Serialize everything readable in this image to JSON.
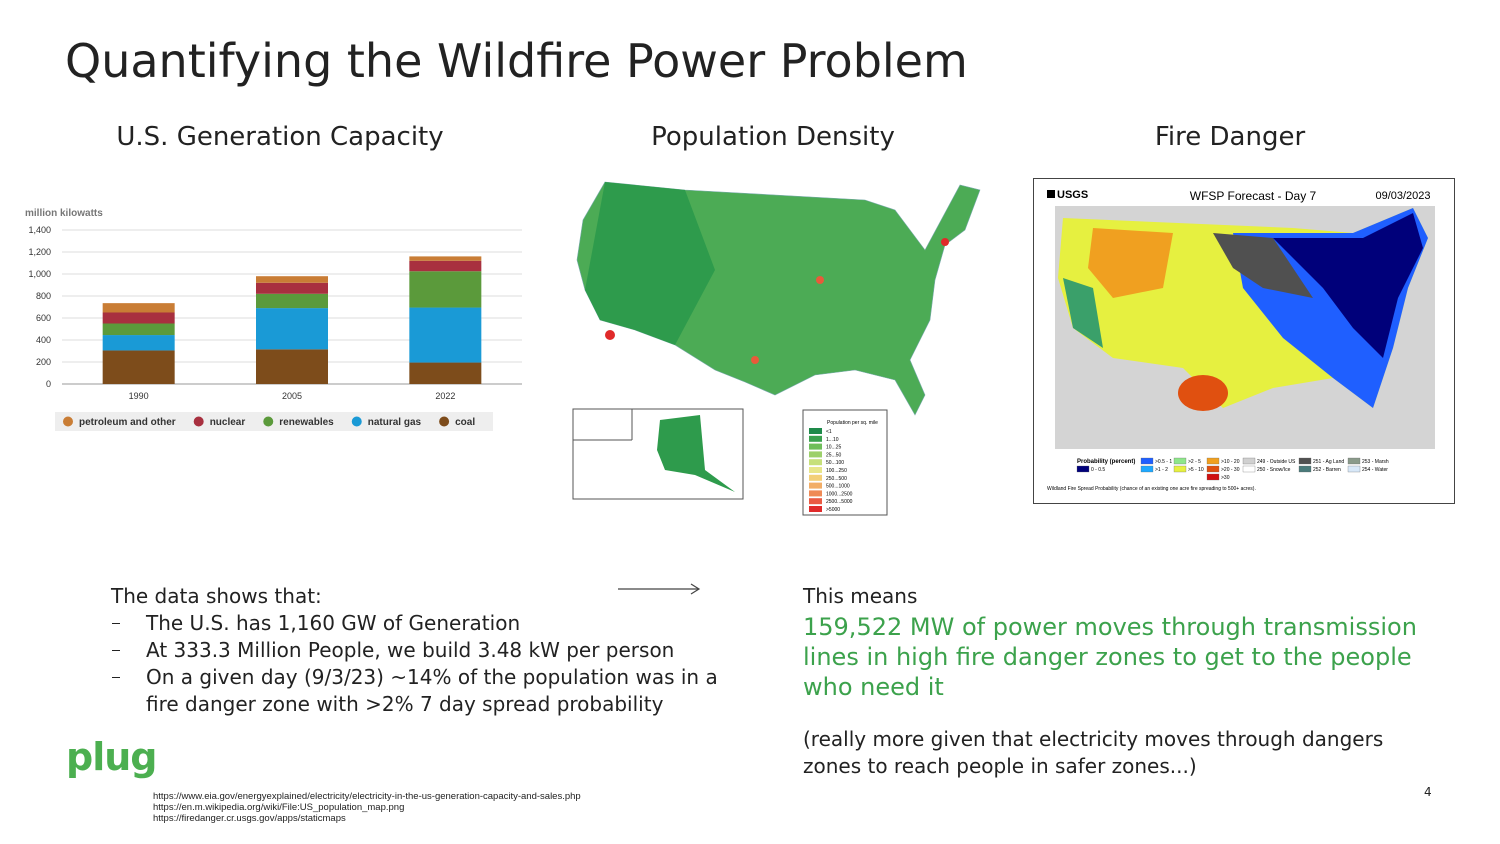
{
  "title": "Quantifying the Wildfire Power Problem",
  "panels": {
    "capacity": "U.S. Generation Capacity",
    "population": "Population Density",
    "fire": "Fire Danger"
  },
  "chart_data": {
    "type": "bar",
    "stacked": true,
    "y_label": "million kilowatts",
    "categories": [
      "1990",
      "2005",
      "2022"
    ],
    "series": [
      {
        "name": "petroleum and other",
        "color": "#c97d35",
        "values": [
          85,
          60,
          40
        ]
      },
      {
        "name": "nuclear",
        "color": "#a8303f",
        "values": [
          100,
          100,
          95
        ]
      },
      {
        "name": "renewables",
        "color": "#5b9a3b",
        "values": [
          105,
          130,
          330
        ]
      },
      {
        "name": "natural gas",
        "color": "#1a9ad6",
        "values": [
          140,
          375,
          500
        ]
      },
      {
        "name": "coal",
        "color": "#7d4c1b",
        "values": [
          305,
          315,
          195
        ]
      }
    ],
    "ylim": [
      0,
      1400
    ],
    "yticks": [
      0,
      200,
      400,
      600,
      800,
      {
        "value": 1000,
        "label": "1,000"
      },
      {
        "value": 1200,
        "label": "1,200"
      },
      {
        "value": 1400,
        "label": "1,400"
      }
    ],
    "grid": true
  },
  "population_map": {
    "legend_title": "Population per sq. mile",
    "legend": [
      "<1",
      "1...10",
      "10...25",
      "25...50",
      "50...100",
      "100...250",
      "250...500",
      "500...1000",
      "1000...2500",
      "2500...5000",
      ">5000"
    ],
    "colors": [
      "#1e8a4a",
      "#3aa14e",
      "#6fbe5a",
      "#9cd06a",
      "#c6e07a",
      "#e8e68a",
      "#f3cf78",
      "#f2ad66",
      "#ef8a55",
      "#ea5a42",
      "#e02a2a"
    ]
  },
  "fire_map": {
    "agency": "USGS",
    "title": "WFSP Forecast - Day 7",
    "date": "09/03/2023",
    "legend_title": "Probability (percent)",
    "legend": [
      {
        "label": "0 - 0.5",
        "color": "#00007a"
      },
      {
        "label": ">0.5 - 1",
        "color": "#1f5fff"
      },
      {
        "label": ">1 - 2",
        "color": "#1ea8ff"
      },
      {
        "label": ">2 - 5",
        "color": "#8ee68a"
      },
      {
        "label": ">5 - 10",
        "color": "#e6f040"
      },
      {
        "label": ">10 - 20",
        "color": "#f0a020"
      },
      {
        "label": ">20 - 30",
        "color": "#e05010"
      },
      {
        "label": ">30",
        "color": "#d01010"
      },
      {
        "label": "249 - Outside US",
        "color": "#d0d0d0"
      },
      {
        "label": "250 - Snow/Ice",
        "color": "#ffffff"
      },
      {
        "label": "251 - Ag Land",
        "color": "#505050"
      },
      {
        "label": "252 - Barren",
        "color": "#4a7a7a"
      },
      {
        "label": "253 - Marsh",
        "color": "#8a9a8a"
      },
      {
        "label": "254 - Water",
        "color": "#d8e8f8"
      }
    ],
    "caption": "Wildland Fire Spread Probability (chance of an existing one acre fire spreading to 500+ acres)."
  },
  "findings": {
    "heading": "The data shows that:",
    "bullets": [
      "The U.S. has 1,160 GW of Generation",
      "At 333.3 Million People, we build 3.48 kW per person",
      "On a given day (9/3/23) ~14% of the population was in a fire danger zone with >2% 7 day spread probability"
    ]
  },
  "conclusion": {
    "lead": "This means",
    "highlight": "159,522 MW of power moves through transmission lines in high fire danger zones to get to the people who need it",
    "note": "(really more given that electricity moves through dangers zones to reach people in safer zones...)"
  },
  "sources": [
    "https://www.eia.gov/energyexplained/electricity/electricity-in-the-us-generation-capacity-and-sales.php",
    "https://en.m.wikipedia.org/wiki/File:US_population_map.png",
    "https://firedanger.cr.usgs.gov/apps/staticmaps"
  ],
  "page_number": 4,
  "logo": "plug"
}
